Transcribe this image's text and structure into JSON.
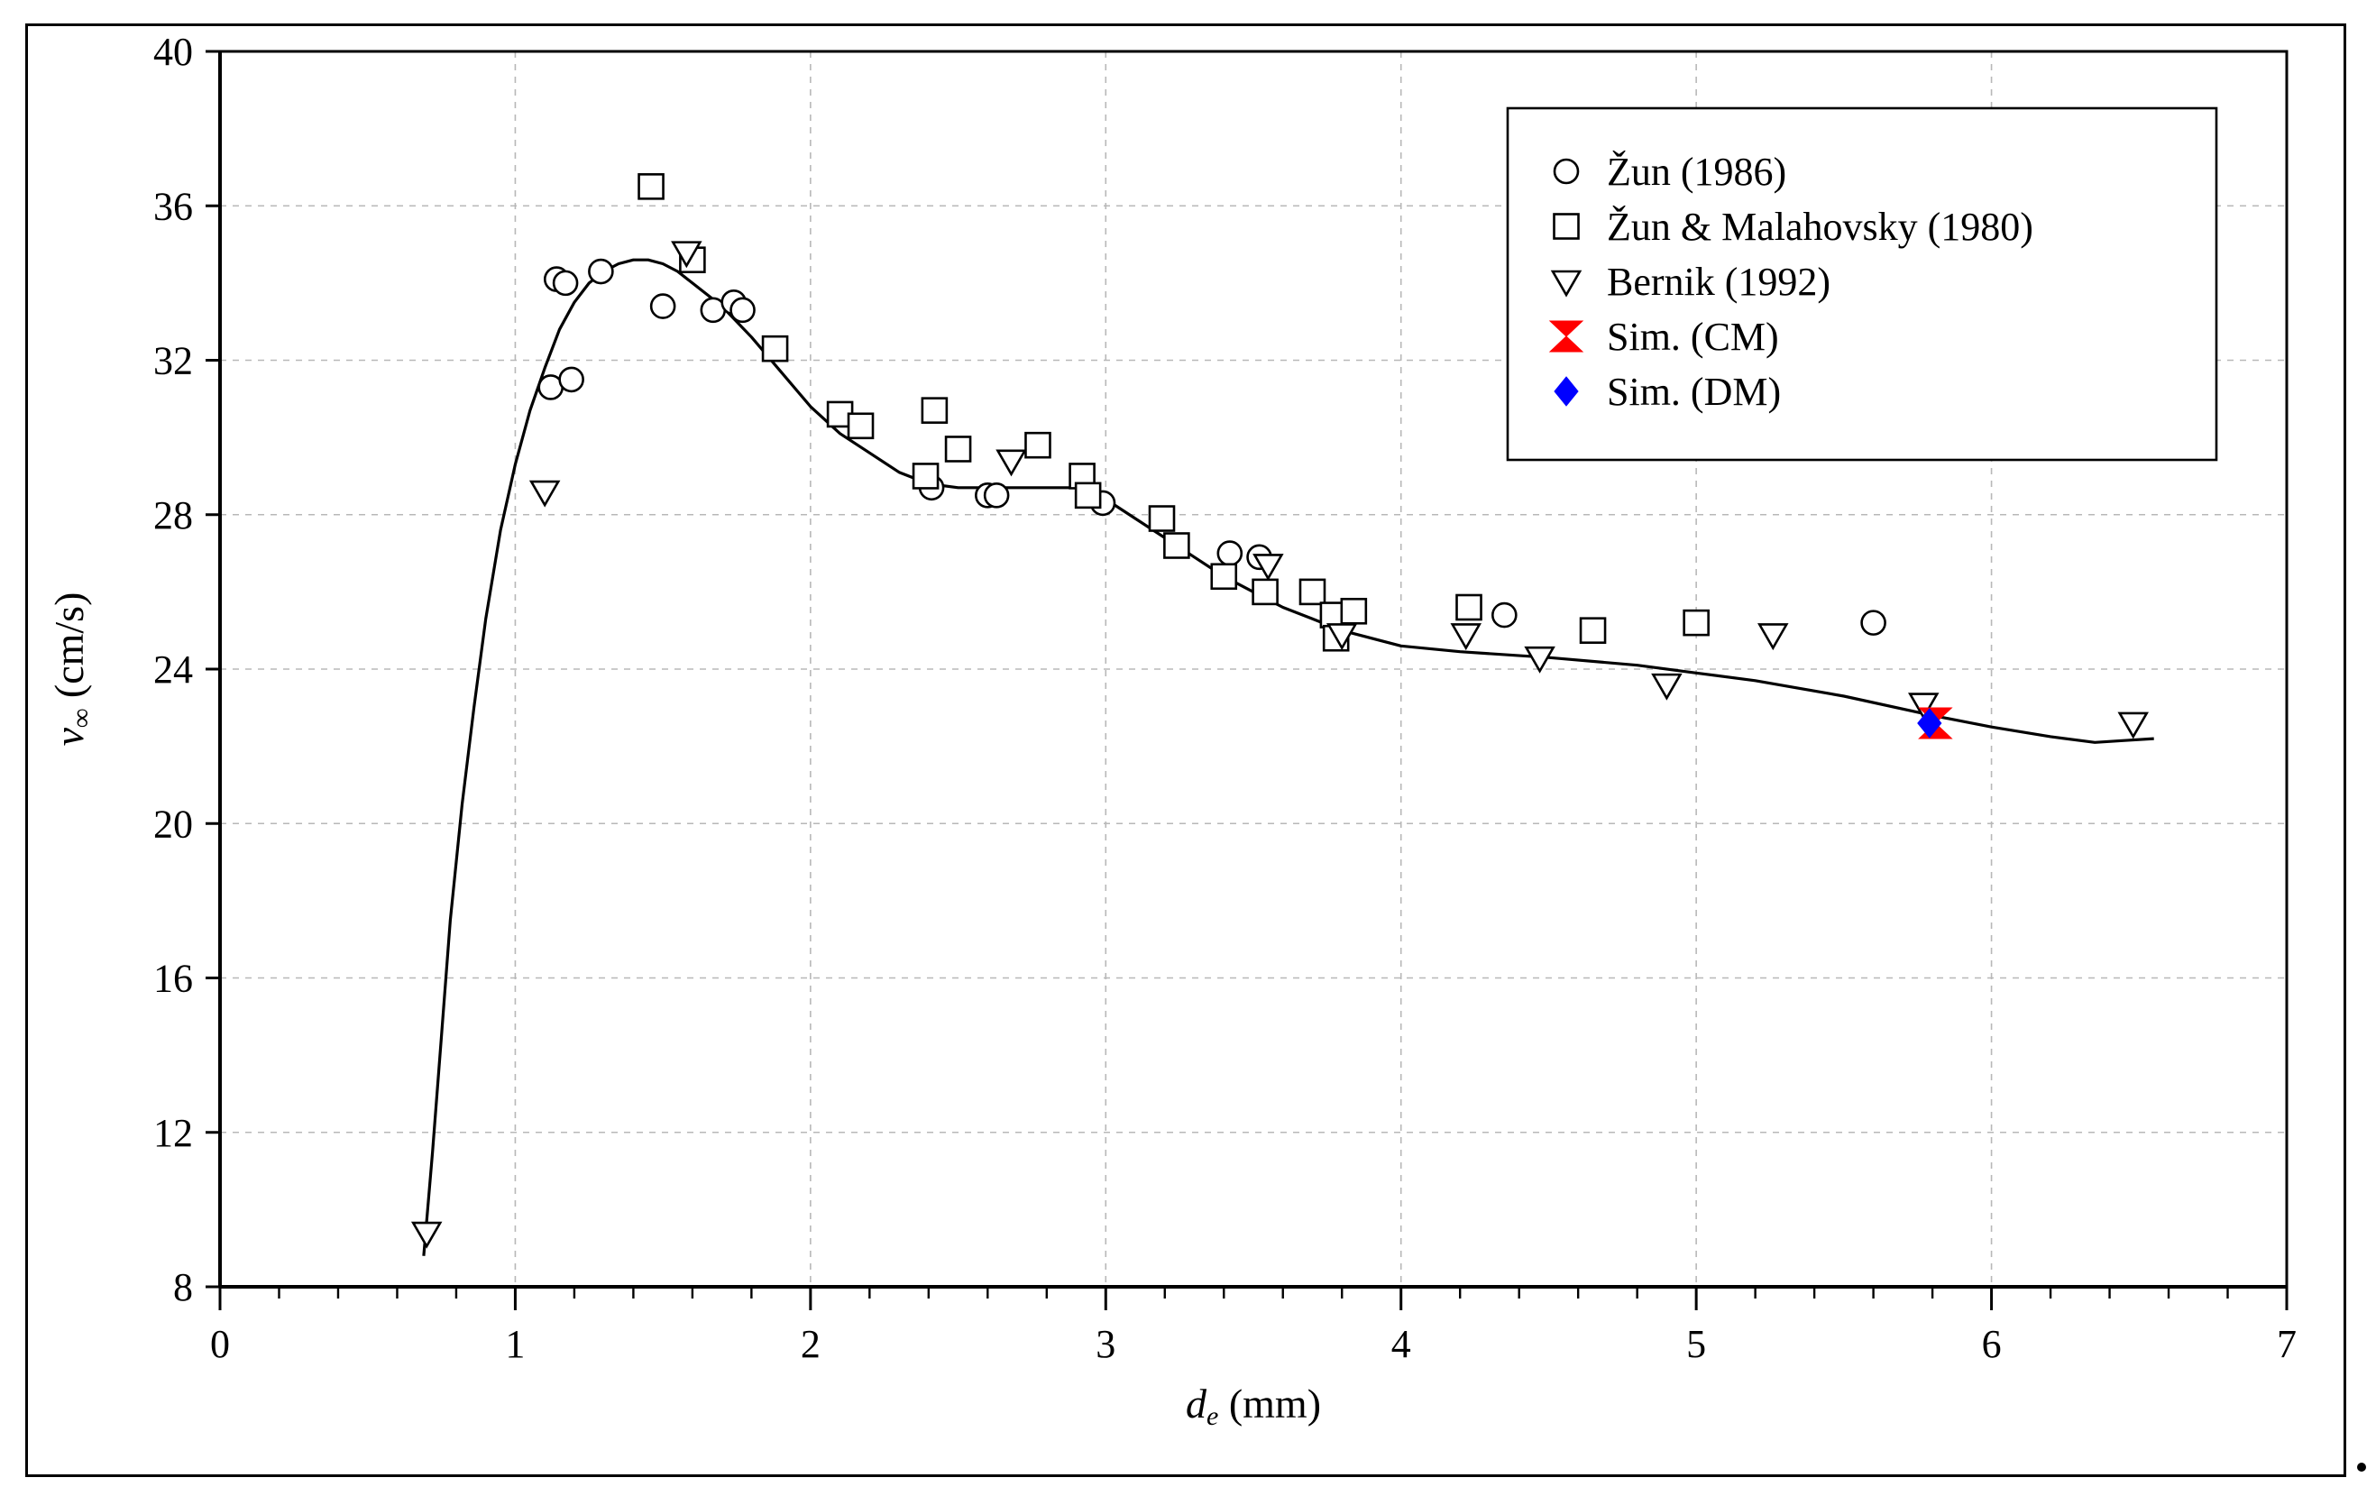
{
  "chart_data": {
    "type": "scatter",
    "title": "",
    "xlabel": {
      "symbol": "d",
      "subscript": "e",
      "unit": " (mm)"
    },
    "ylabel": {
      "symbol": "v",
      "subscript": "∞",
      "unit": " (cm/s)"
    },
    "xlim": [
      0,
      7
    ],
    "ylim": [
      8,
      40
    ],
    "xticks": [
      0,
      1,
      2,
      3,
      4,
      5,
      6,
      7
    ],
    "yticks": [
      8,
      12,
      16,
      20,
      24,
      28,
      32,
      36,
      40
    ],
    "xtick_labels": [
      "0",
      "1",
      "2",
      "3",
      "4",
      "5",
      "6",
      "7"
    ],
    "ytick_labels": [
      "8",
      "12",
      "16",
      "20",
      "24",
      "28",
      "32",
      "36",
      "40"
    ],
    "x_minor_step": 0.2,
    "grid": true,
    "legend_position": "top-right",
    "series": [
      {
        "name": "Žun (1986)",
        "marker": "circle",
        "color": "#000000",
        "points": [
          [
            1.12,
            31.3
          ],
          [
            1.14,
            34.1
          ],
          [
            1.17,
            34.0
          ],
          [
            1.19,
            31.5
          ],
          [
            1.29,
            34.3
          ],
          [
            1.5,
            33.4
          ],
          [
            1.67,
            33.3
          ],
          [
            1.74,
            33.5
          ],
          [
            1.77,
            33.3
          ],
          [
            2.41,
            28.7
          ],
          [
            2.6,
            28.5
          ],
          [
            2.63,
            28.5
          ],
          [
            2.99,
            28.3
          ],
          [
            3.42,
            27.0
          ],
          [
            3.52,
            26.9
          ],
          [
            4.35,
            25.4
          ],
          [
            5.6,
            25.2
          ]
        ]
      },
      {
        "name": "Žun & Malahovsky (1980)",
        "marker": "square",
        "color": "#000000",
        "points": [
          [
            1.46,
            36.5
          ],
          [
            1.6,
            34.6
          ],
          [
            1.88,
            32.3
          ],
          [
            2.1,
            30.6
          ],
          [
            2.17,
            30.3
          ],
          [
            2.39,
            29.0
          ],
          [
            2.42,
            30.7
          ],
          [
            2.5,
            29.7
          ],
          [
            2.77,
            29.8
          ],
          [
            2.92,
            29.0
          ],
          [
            2.94,
            28.5
          ],
          [
            3.19,
            27.9
          ],
          [
            3.24,
            27.2
          ],
          [
            3.4,
            26.4
          ],
          [
            3.54,
            26.0
          ],
          [
            3.7,
            26.0
          ],
          [
            3.77,
            25.4
          ],
          [
            3.78,
            24.8
          ],
          [
            3.84,
            25.5
          ],
          [
            4.23,
            25.6
          ],
          [
            4.65,
            25.0
          ],
          [
            5.0,
            25.2
          ]
        ]
      },
      {
        "name": "Bernik (1992)",
        "marker": "triangle-down",
        "color": "#000000",
        "points": [
          [
            0.7,
            9.4
          ],
          [
            1.1,
            28.6
          ],
          [
            1.58,
            34.8
          ],
          [
            2.68,
            29.4
          ],
          [
            3.55,
            26.7
          ],
          [
            3.8,
            24.9
          ],
          [
            4.22,
            24.9
          ],
          [
            4.47,
            24.3
          ],
          [
            4.9,
            23.6
          ],
          [
            5.26,
            24.9
          ],
          [
            5.77,
            23.1
          ],
          [
            6.48,
            22.6
          ]
        ]
      },
      {
        "name": "Sim. (CM)",
        "marker": "bowtie",
        "color": "#ff0000",
        "points": [
          [
            5.81,
            22.6
          ]
        ]
      },
      {
        "name": "Sim. (DM)",
        "marker": "diamond",
        "color": "#0000ff",
        "points": [
          [
            5.79,
            22.6
          ]
        ]
      }
    ],
    "fit_curve": {
      "name": "curve",
      "color": "#000000",
      "x": [
        0.69,
        0.72,
        0.75,
        0.78,
        0.82,
        0.86,
        0.9,
        0.95,
        1.0,
        1.05,
        1.1,
        1.15,
        1.2,
        1.25,
        1.3,
        1.35,
        1.4,
        1.45,
        1.5,
        1.55,
        1.6,
        1.65,
        1.7,
        1.8,
        1.9,
        2.0,
        2.1,
        2.2,
        2.3,
        2.4,
        2.5,
        2.6,
        2.7,
        2.8,
        2.9,
        2.95,
        3.0,
        3.1,
        3.2,
        3.3,
        3.4,
        3.5,
        3.6,
        3.7,
        3.8,
        4.0,
        4.2,
        4.5,
        4.8,
        5.0,
        5.2,
        5.5,
        5.8,
        6.0,
        6.2,
        6.35,
        6.45,
        6.55
      ],
      "y": [
        8.8,
        11.5,
        14.5,
        17.5,
        20.5,
        23.0,
        25.3,
        27.6,
        29.3,
        30.7,
        31.8,
        32.8,
        33.5,
        34.0,
        34.3,
        34.5,
        34.6,
        34.6,
        34.5,
        34.3,
        34.0,
        33.7,
        33.4,
        32.6,
        31.7,
        30.8,
        30.1,
        29.6,
        29.1,
        28.8,
        28.7,
        28.7,
        28.7,
        28.7,
        28.7,
        28.6,
        28.4,
        27.9,
        27.4,
        26.9,
        26.4,
        26.0,
        25.6,
        25.3,
        25.0,
        24.6,
        24.45,
        24.3,
        24.1,
        23.9,
        23.7,
        23.3,
        22.8,
        22.5,
        22.25,
        22.1,
        22.15,
        22.2
      ]
    }
  }
}
